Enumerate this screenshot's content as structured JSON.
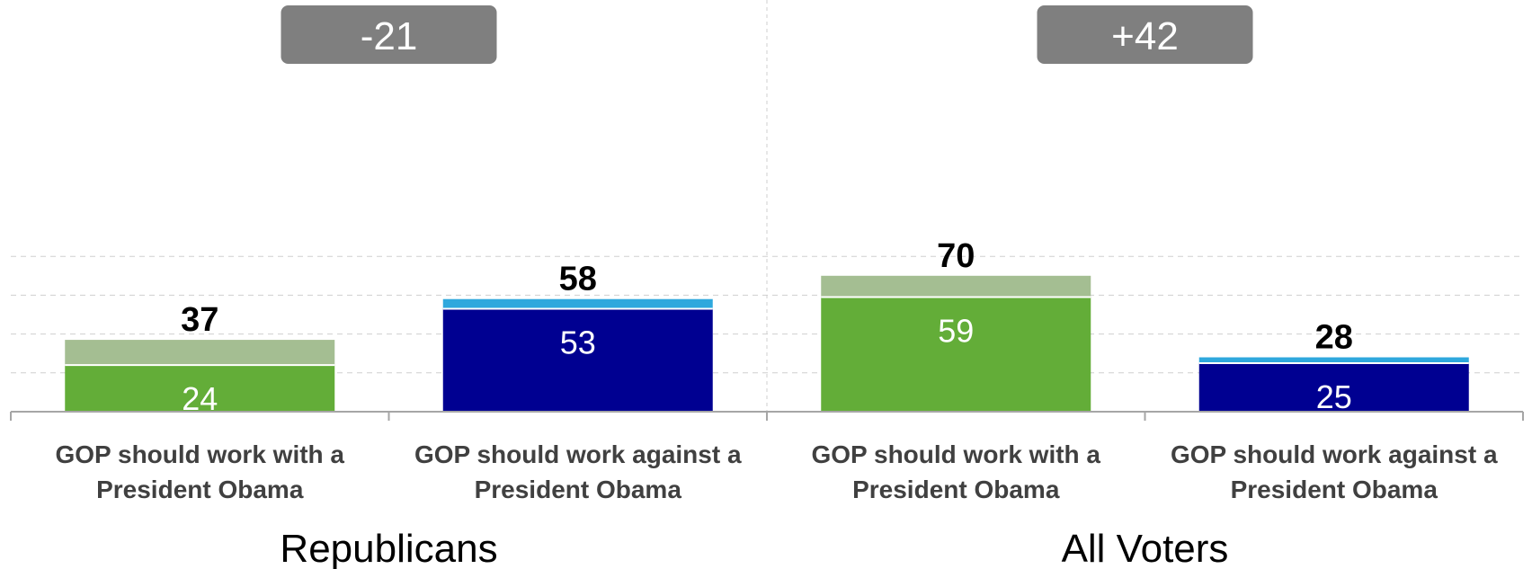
{
  "chart_data": {
    "type": "bar",
    "stacked": true,
    "ylim": [
      0,
      100
    ],
    "grid": true,
    "groups": [
      {
        "name": "Republicans",
        "difference": "-21",
        "bars": [
          {
            "category": "GOP should work with a President Obama",
            "strong": 24,
            "total": 37
          },
          {
            "category": "GOP should work against a President Obama",
            "strong": 53,
            "total": 58
          }
        ]
      },
      {
        "name": "All Voters",
        "difference": "+42",
        "bars": [
          {
            "category": "GOP should work with a President Obama",
            "strong": 59,
            "total": 70
          },
          {
            "category": "GOP should work against a President Obama",
            "strong": 25,
            "total": 28
          }
        ]
      }
    ],
    "colors": {
      "with_strong": "#63AD38",
      "with_rest": "#A4BE92",
      "against_strong": "#000091",
      "against_rest": "#2EA8DD",
      "difference_box": "#7F7F7F",
      "grid": "#CFCFCF",
      "axis": "#A6A6A6"
    }
  }
}
